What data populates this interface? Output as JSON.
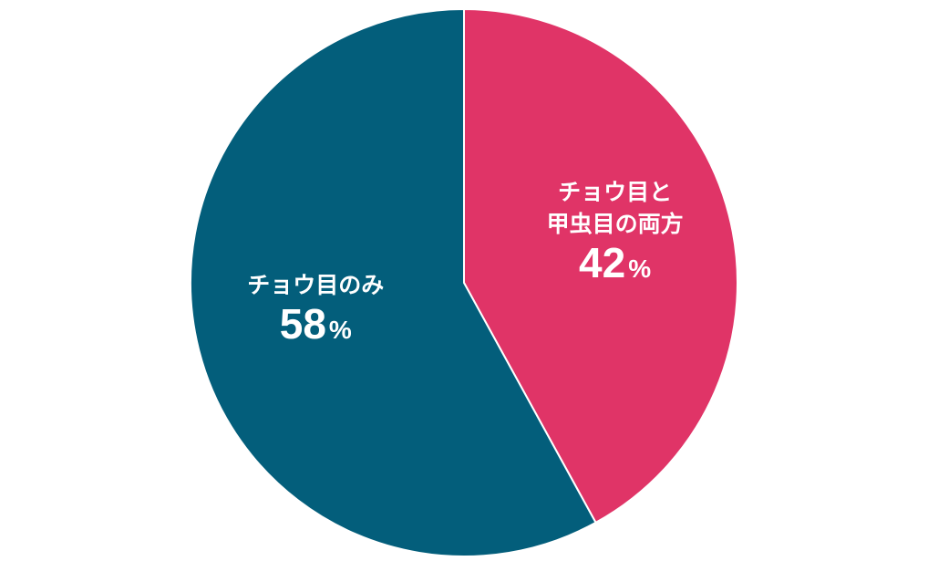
{
  "chart_data": {
    "type": "pie",
    "slices": [
      {
        "label_lines": [
          "チョウ目と",
          "甲虫目の両方"
        ],
        "value": 42,
        "value_text": "42",
        "unit": "%",
        "color": "#E03467"
      },
      {
        "label_lines": [
          "チョウ目のみ"
        ],
        "value": 58,
        "value_text": "58",
        "unit": "%",
        "color": "#035E7B"
      }
    ],
    "start": "12 o'clock",
    "direction": "clockwise",
    "separator_color": "#ffffff"
  }
}
